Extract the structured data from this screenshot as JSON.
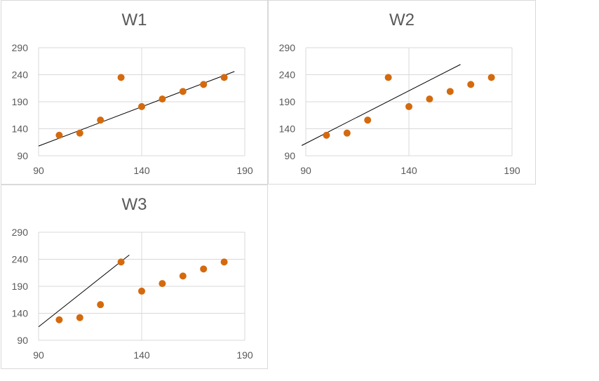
{
  "chart_data": [
    {
      "type": "scatter",
      "title": "W1",
      "xlabel": "",
      "ylabel": "",
      "xlim": [
        90,
        190
      ],
      "ylim": [
        90,
        290
      ],
      "xticks": [
        90,
        140,
        190
      ],
      "yticks": [
        90,
        140,
        190,
        240,
        290
      ],
      "grid": true,
      "points": {
        "x": [
          100,
          110,
          120,
          130,
          140,
          150,
          160,
          170,
          180
        ],
        "y": [
          128,
          132,
          156,
          235,
          181,
          195,
          209,
          222,
          235
        ]
      },
      "line": {
        "x": [
          90,
          185
        ],
        "y": [
          108,
          246
        ]
      },
      "marker_color": "#D46A0E",
      "line_color": "#000000"
    },
    {
      "type": "scatter",
      "title": "W2",
      "xlabel": "",
      "ylabel": "",
      "xlim": [
        90,
        190
      ],
      "ylim": [
        90,
        290
      ],
      "xticks": [
        90,
        140,
        190
      ],
      "yticks": [
        90,
        140,
        190,
        240,
        290
      ],
      "grid": true,
      "points": {
        "x": [
          100,
          110,
          120,
          130,
          140,
          150,
          160,
          170,
          180
        ],
        "y": [
          128,
          132,
          156,
          235,
          181,
          195,
          209,
          222,
          235
        ]
      },
      "line": {
        "x": [
          88,
          165
        ],
        "y": [
          109,
          259
        ]
      },
      "marker_color": "#D46A0E",
      "line_color": "#000000"
    },
    {
      "type": "scatter",
      "title": "W3",
      "xlabel": "",
      "ylabel": "",
      "xlim": [
        90,
        190
      ],
      "ylim": [
        90,
        290
      ],
      "xticks": [
        90,
        140,
        190
      ],
      "yticks": [
        90,
        140,
        190,
        240,
        290
      ],
      "grid": true,
      "points": {
        "x": [
          100,
          110,
          120,
          130,
          140,
          150,
          160,
          170,
          180
        ],
        "y": [
          128,
          132,
          156,
          235,
          181,
          195,
          209,
          222,
          235
        ]
      },
      "line": {
        "x": [
          90,
          134
        ],
        "y": [
          115,
          248
        ]
      },
      "marker_color": "#D46A0E",
      "line_color": "#000000"
    }
  ]
}
